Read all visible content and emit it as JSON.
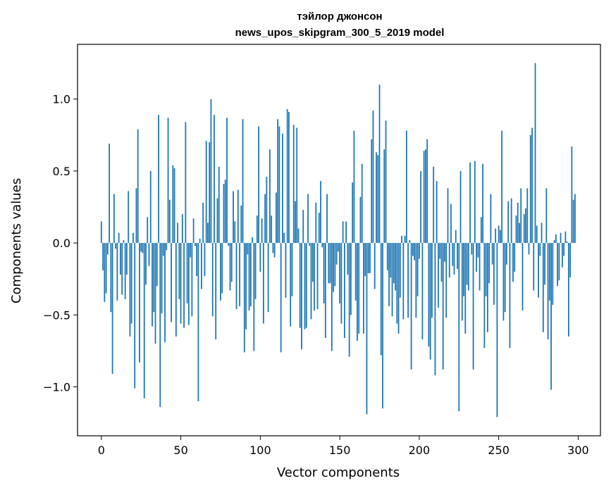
{
  "chart_data": {
    "type": "bar",
    "title": [
      "тэйлор джонсон",
      "news_upos_skipgram_300_5_2019 model"
    ],
    "xlabel": "Vector components",
    "ylabel": "Components values",
    "xlim": [
      -15,
      314
    ],
    "ylim": [
      -1.34,
      1.38
    ],
    "xticks": [
      0,
      50,
      100,
      150,
      200,
      250,
      300
    ],
    "xtick_labels": [
      "0",
      "50",
      "100",
      "150",
      "200",
      "250",
      "300"
    ],
    "yticks": [
      -1.0,
      -0.5,
      0.0,
      0.5,
      1.0
    ],
    "ytick_labels": [
      "−1.0",
      "−0.5",
      "0.0",
      "0.5",
      "1.0"
    ],
    "bar_color": "#1f77b4",
    "grid": false,
    "legend": "none",
    "values": [
      0.15,
      -0.19,
      -0.41,
      -0.35,
      -0.08,
      0.69,
      -0.48,
      -0.91,
      0.34,
      -0.04,
      -0.4,
      0.07,
      -0.22,
      -0.36,
      0.02,
      -0.39,
      -0.22,
      0.36,
      -0.65,
      -0.56,
      0.07,
      -1.01,
      0.38,
      0.79,
      -0.83,
      -0.06,
      -0.07,
      -1.08,
      -0.29,
      0.18,
      -0.16,
      0.5,
      -0.58,
      -0.48,
      -0.7,
      -0.3,
      0.89,
      -1.14,
      -0.49,
      -0.09,
      -0.69,
      -0.05,
      0.87,
      0.3,
      -0.55,
      0.54,
      0.52,
      -0.65,
      0.14,
      -0.39,
      -0.56,
      0.2,
      -0.59,
      0.84,
      -0.42,
      -0.57,
      -0.1,
      -0.51,
      0.17,
      -0.02,
      -0.23,
      -1.1,
      0.03,
      -0.32,
      0.28,
      -0.23,
      0.71,
      0.14,
      0.7,
      1.0,
      -0.51,
      0.89,
      -0.67,
      0.31,
      0.53,
      -0.4,
      -0.35,
      0.41,
      0.44,
      0.87,
      -0.02,
      -0.33,
      -0.27,
      0.36,
      0.15,
      -0.46,
      0.37,
      -0.44,
      0.26,
      0.86,
      -0.76,
      -0.6,
      -0.08,
      -0.47,
      -0.44,
      0.04,
      -0.75,
      -0.39,
      0.19,
      0.81,
      -0.2,
      0.17,
      -0.56,
      0.34,
      0.46,
      -0.48,
      0.65,
      0.19,
      -0.07,
      -0.1,
      0.35,
      0.86,
      0.81,
      -0.76,
      0.76,
      0.07,
      -0.38,
      0.93,
      0.91,
      -0.58,
      -0.37,
      0.82,
      0.29,
      0.8,
      0.1,
      -0.59,
      -0.74,
      0.23,
      -0.6,
      -0.59,
      0.34,
      -0.02,
      -0.53,
      -0.27,
      -0.47,
      0.28,
      -0.46,
      0.21,
      0.43,
      -0.03,
      -0.42,
      -0.66,
      0.34,
      -0.28,
      -0.28,
      -0.75,
      -0.34,
      -0.3,
      -0.15,
      -0.06,
      -0.42,
      -0.56,
      0.15,
      -0.66,
      0.15,
      -0.22,
      -0.79,
      -0.5,
      0.42,
      0.78,
      -0.4,
      -0.68,
      -0.63,
      0.32,
      0.55,
      -0.63,
      -0.23,
      -1.19,
      -0.21,
      -0.21,
      0.72,
      0.92,
      -0.32,
      0.63,
      0.61,
      1.1,
      -0.78,
      -1.15,
      0.65,
      0.85,
      -0.19,
      -0.44,
      -0.24,
      -0.51,
      -0.28,
      -0.33,
      -0.56,
      -0.63,
      -0.38,
      0.05,
      -0.53,
      0.05,
      0.78,
      -0.52,
      0.02,
      -0.88,
      -0.09,
      -0.12,
      -0.52,
      -0.37,
      -0.11,
      0.5,
      -0.67,
      0.64,
      0.65,
      0.72,
      -0.72,
      -0.81,
      -0.52,
      0.53,
      -0.92,
      0.43,
      -0.45,
      -0.11,
      -0.27,
      -0.88,
      -0.13,
      -0.52,
      0.38,
      -0.24,
      0.27,
      -0.16,
      -0.22,
      0.09,
      -0.18,
      -1.17,
      0.5,
      -0.54,
      -0.37,
      -0.63,
      -0.29,
      -0.33,
      0.56,
      -0.08,
      -0.88,
      0.57,
      -0.2,
      -0.1,
      -0.33,
      0.18,
      0.55,
      -0.73,
      -0.37,
      -0.62,
      -0.28,
      0.34,
      -0.15,
      -0.43,
      0.1,
      -1.21,
      0.12,
      0.09,
      0.78,
      -0.54,
      -0.48,
      -0.15,
      0.29,
      -0.73,
      0.31,
      -0.27,
      -0.2,
      0.19,
      0.28,
      0.14,
      0.38,
      -0.47,
      0.2,
      0.24,
      0.38,
      -0.08,
      0.75,
      0.8,
      -0.33,
      1.25,
      0.12,
      -0.38,
      -0.09,
      0.14,
      -0.62,
      -0.29,
      0.38,
      -0.67,
      -0.4,
      -1.02,
      -0.43,
      0.02,
      0.06,
      -0.3,
      -0.26,
      0.07,
      -0.17,
      -0.09,
      0.08,
      0.01,
      -0.65,
      -0.24,
      0.67,
      0.3,
      0.34
    ]
  }
}
